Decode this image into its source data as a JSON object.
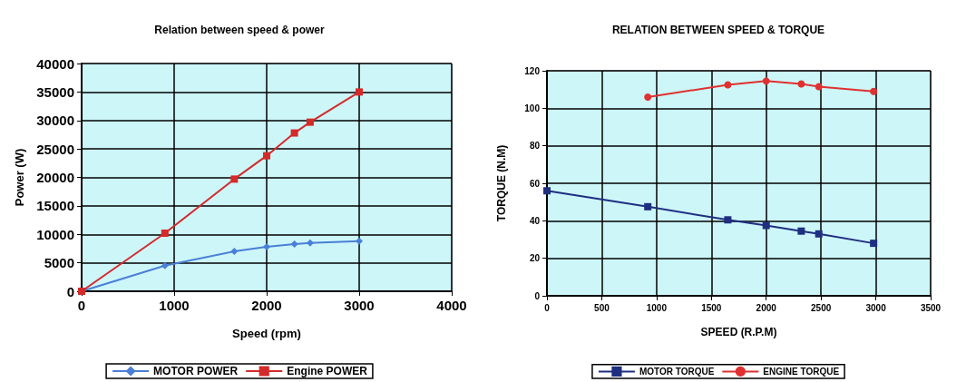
{
  "chart_data": [
    {
      "type": "line",
      "title": "Relation between speed & power",
      "xlabel": "Speed (rpm)",
      "ylabel": "Power (W)",
      "xlim": [
        0,
        4000
      ],
      "xticks": [
        0,
        1000,
        2000,
        3000,
        4000
      ],
      "ylim": [
        0,
        40000
      ],
      "yticks": [
        0,
        5000,
        10000,
        15000,
        20000,
        25000,
        30000,
        35000,
        40000
      ],
      "grid": true,
      "legend": "bottom",
      "series": [
        {
          "name": "MOTOR POWER",
          "color": "#4a7fd6",
          "marker": "diamond",
          "x": [
            0,
            900,
            1650,
            2000,
            2300,
            2470,
            3000
          ],
          "values": [
            0,
            4500,
            7000,
            7800,
            8300,
            8500,
            8800
          ]
        },
        {
          "name": "Engine POWER",
          "color": "#d42a2a",
          "marker": "square",
          "x": [
            0,
            900,
            1650,
            2000,
            2300,
            2470,
            3000
          ],
          "values": [
            0,
            10200,
            19700,
            23800,
            27800,
            29700,
            35000
          ]
        }
      ]
    },
    {
      "type": "line",
      "title": "RELATION BETWEEN SPEED & TORQUE",
      "xlabel": "SPEED (R.P.M)",
      "ylabel": "TORQUE (N.M)",
      "xlim": [
        0,
        3500
      ],
      "xticks": [
        0,
        500,
        1000,
        1500,
        2000,
        2500,
        3000,
        3500
      ],
      "ylim": [
        0,
        120
      ],
      "yticks": [
        0,
        20,
        40,
        60,
        80,
        100,
        120
      ],
      "grid": true,
      "legend": "bottom",
      "series": [
        {
          "name": "MOTOR TORQUE",
          "color": "#1f2f80",
          "marker": "square",
          "x": [
            0,
            920,
            1650,
            2000,
            2320,
            2480,
            2980
          ],
          "values": [
            56,
            47.5,
            40.5,
            37.5,
            34.5,
            33,
            28
          ]
        },
        {
          "name": "ENGINE TORQUE",
          "color": "#e03030",
          "marker": "circle",
          "x": [
            920,
            1650,
            2000,
            2320,
            2480,
            2980
          ],
          "values": [
            106,
            112.5,
            114.5,
            113,
            111.5,
            109
          ]
        }
      ]
    }
  ]
}
